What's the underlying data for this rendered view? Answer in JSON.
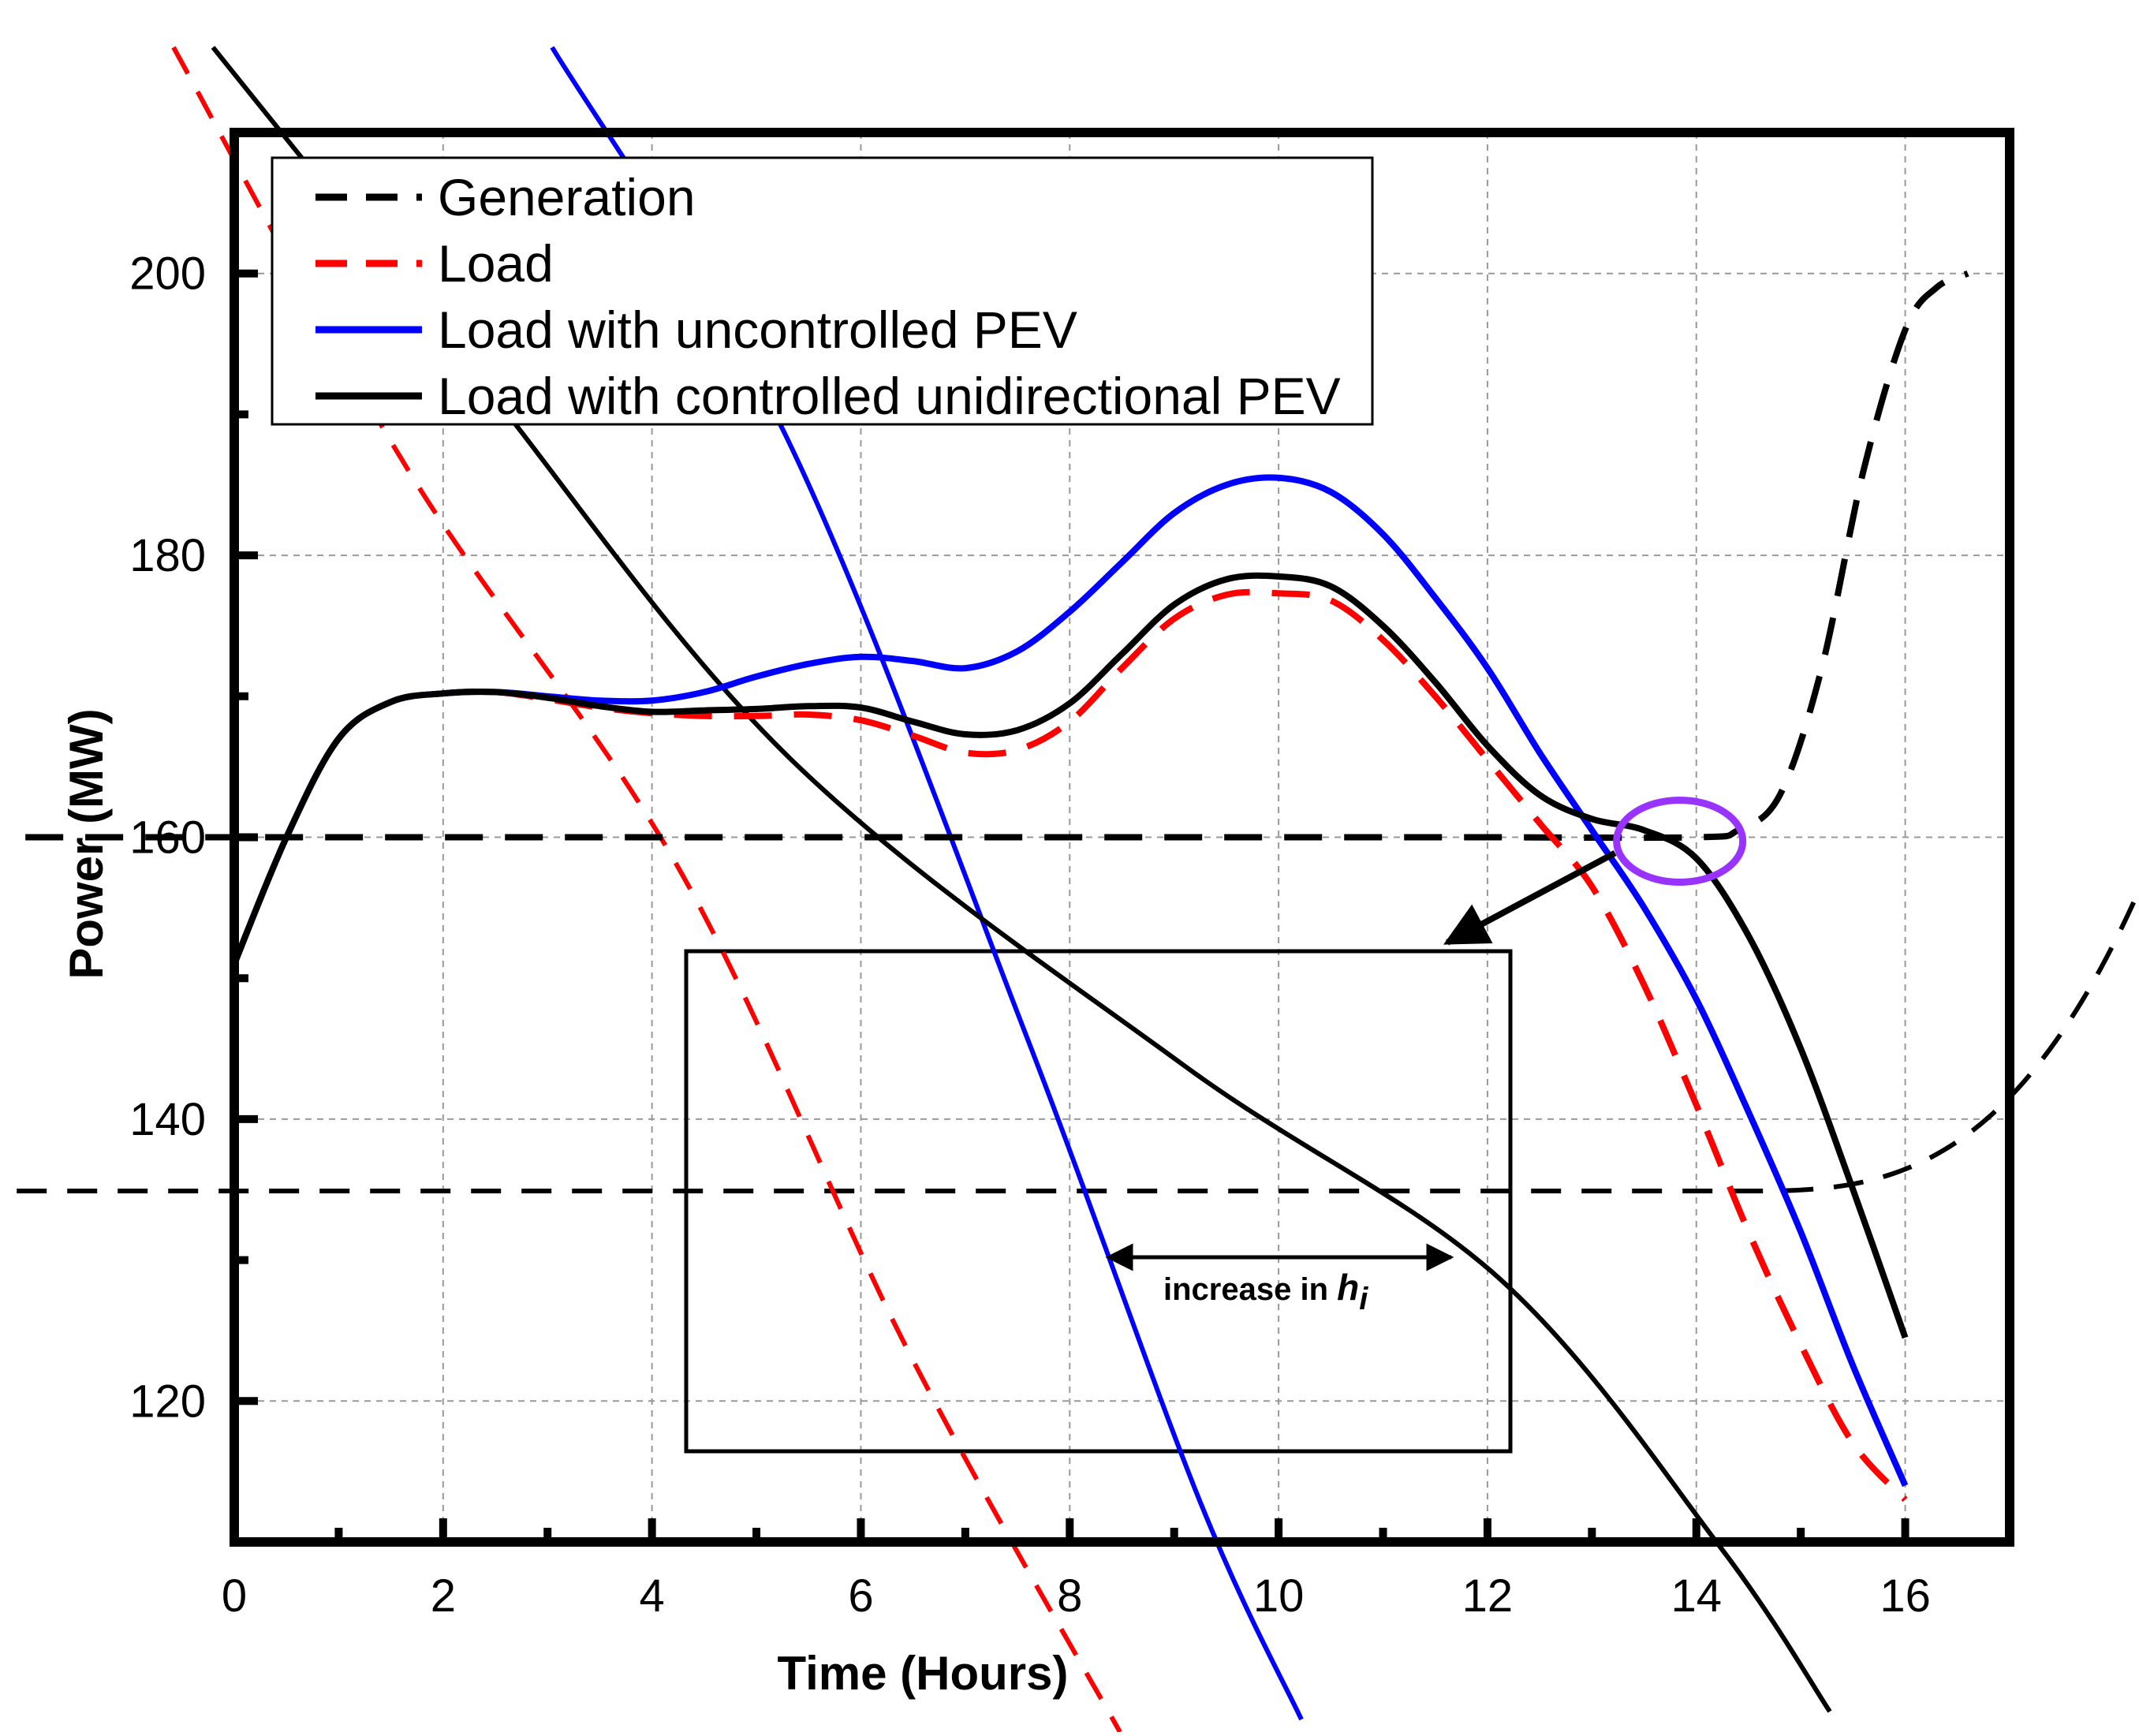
{
  "chart_data": {
    "type": "line",
    "title": "",
    "xlabel": "Time (Hours)",
    "ylabel": "Power (MW)",
    "xlim": [
      0,
      17
    ],
    "ylim": [
      110,
      210
    ],
    "xticks": [
      0,
      2,
      4,
      6,
      8,
      10,
      12,
      14,
      16
    ],
    "xtick_labels": [
      "0",
      "2",
      "4",
      "6",
      "8",
      "10",
      "12",
      "14",
      "16"
    ],
    "yticks": [
      120,
      140,
      160,
      180,
      200
    ],
    "ytick_labels": [
      "120",
      "140",
      "160",
      "180",
      "200"
    ],
    "grid": true,
    "legend_position": "top-left",
    "series": [
      {
        "name": "Generation",
        "color": "#000000",
        "style": "dashed",
        "x": [
          -2,
          0,
          2,
          4,
          6,
          8,
          10,
          12,
          14,
          14.4,
          14.8,
          15.2,
          15.6,
          16.0,
          16.3,
          16.6
        ],
        "y": [
          160,
          160,
          160,
          160,
          160,
          160,
          160,
          160,
          160,
          160.5,
          163,
          172,
          186,
          196,
          199,
          200
        ]
      },
      {
        "name": "Load",
        "color": "#ff0000",
        "style": "dashed",
        "x": [
          0,
          0.5,
          1,
          1.5,
          2,
          2.5,
          3,
          3.5,
          4,
          4.5,
          5,
          5.5,
          6,
          6.5,
          7,
          7.5,
          8,
          8.5,
          9,
          9.5,
          10,
          10.5,
          11,
          11.5,
          12,
          12.5,
          13,
          13.5,
          14,
          14.5,
          15,
          15.5,
          16
        ],
        "y": [
          151,
          160,
          167,
          169.6,
          170.2,
          170.3,
          169.8,
          169.2,
          168.8,
          168.6,
          168.6,
          168.7,
          168.3,
          167.2,
          166,
          166.2,
          168.2,
          172,
          175.5,
          177.2,
          177.3,
          176.8,
          174,
          170,
          165.5,
          161,
          156.5,
          149.5,
          141,
          132,
          124,
          117,
          113
        ]
      },
      {
        "name": "Load with uncontrolled PEV",
        "color": "#0000ff",
        "style": "solid",
        "x": [
          0,
          0.5,
          1,
          1.5,
          2,
          2.5,
          3,
          3.5,
          4,
          4.5,
          5,
          5.5,
          6,
          6.5,
          7,
          7.5,
          8,
          8.5,
          9,
          9.5,
          10,
          10.5,
          11,
          11.5,
          12,
          12.5,
          13,
          13.5,
          14,
          14.5,
          15,
          15.5,
          16
        ],
        "y": [
          151,
          160,
          167,
          169.6,
          170.2,
          170.3,
          170,
          169.7,
          169.7,
          170.3,
          171.4,
          172.3,
          172.8,
          172.5,
          172,
          173.2,
          176,
          179.5,
          183,
          185,
          185.5,
          184.5,
          181.5,
          177,
          172,
          166,
          160.5,
          155,
          148.5,
          140.5,
          132,
          122.5,
          114
        ]
      },
      {
        "name": "Load with controlled unidirectional PEV",
        "color": "#000000",
        "style": "solid",
        "x": [
          0,
          0.5,
          1,
          1.5,
          2,
          2.5,
          3,
          3.5,
          4,
          4.5,
          5,
          5.5,
          6,
          6.5,
          7,
          7.5,
          8,
          8.5,
          9,
          9.5,
          10,
          10.5,
          11,
          11.5,
          12,
          12.5,
          13,
          13.5,
          14,
          14.5,
          15,
          15.5,
          16
        ],
        "y": [
          151,
          160,
          167,
          169.6,
          170.2,
          170.3,
          169.9,
          169.3,
          168.9,
          169,
          169.1,
          169.3,
          169.2,
          168.2,
          167.3,
          167.6,
          169.5,
          173,
          176.5,
          178.3,
          178.5,
          177.8,
          175,
          171,
          166.5,
          163,
          161.3,
          160.5,
          158.5,
          153,
          145,
          135,
          124.5
        ]
      }
    ],
    "inset": {
      "generation_level": 135,
      "ramp_up_hour": 13.2,
      "annotation": "increase in",
      "annotation_var": "h",
      "annotation_sub": "i"
    },
    "legend": {
      "entries": [
        "Generation",
        "Load",
        "Load with uncontrolled PEV",
        "Load with controlled unidirectional PEV"
      ]
    },
    "colors": {
      "axis": "#000000",
      "grid": "#999999",
      "highlight": "#9933ff"
    }
  }
}
